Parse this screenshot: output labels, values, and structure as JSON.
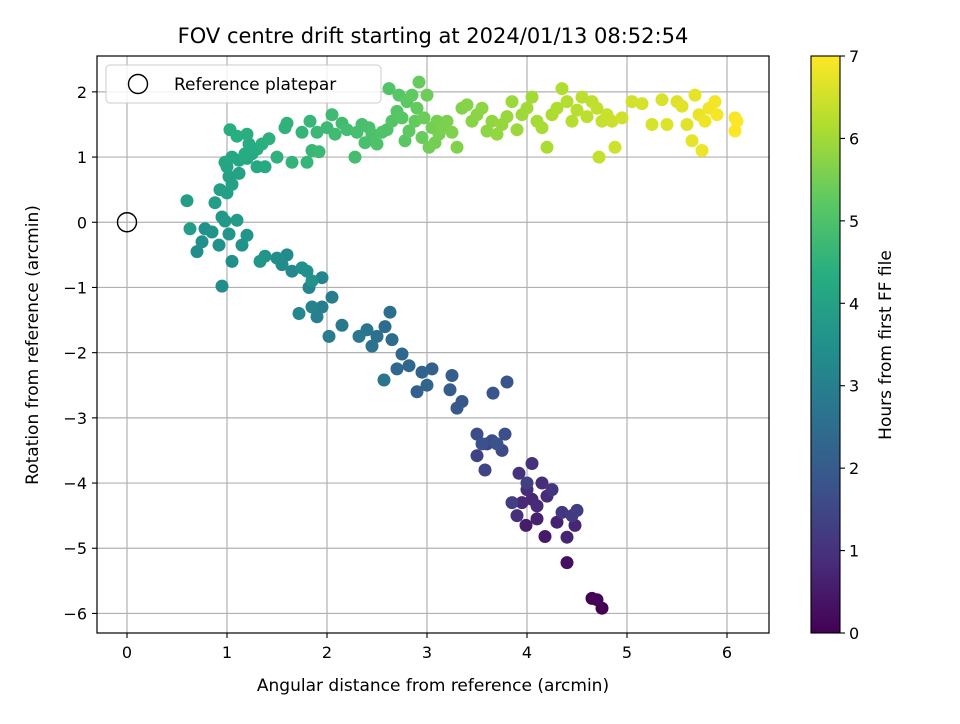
{
  "chart_data": {
    "type": "scatter",
    "title": "FOV centre drift starting at 2024/01/13 08:52:54",
    "xlabel": "Angular distance from reference (arcmin)",
    "ylabel": "Rotation from reference (arcmin)",
    "xlim": [
      -0.3,
      6.42
    ],
    "ylim": [
      -6.3,
      2.55
    ],
    "xticks": [
      0,
      1,
      2,
      3,
      4,
      5,
      6
    ],
    "yticks": [
      -6,
      -5,
      -4,
      -3,
      -2,
      -1,
      0,
      1,
      2
    ],
    "grid": true,
    "legend": {
      "placement": "upper-left",
      "entries": [
        "Reference platepar"
      ]
    },
    "reference_point": {
      "x": 0,
      "y": 0
    },
    "colorbar": {
      "label": "Hours from first FF file",
      "range": [
        0,
        7
      ],
      "ticks": [
        0,
        1,
        2,
        3,
        4,
        5,
        6,
        7
      ],
      "colormap": "viridis"
    },
    "series": [
      {
        "values": [
          [
            4.75,
            -5.92,
            0.0
          ],
          [
            4.65,
            -5.77,
            0.03
          ],
          [
            4.7,
            -5.79,
            0.06
          ],
          [
            4.4,
            -5.22,
            0.3
          ],
          [
            4.18,
            -4.82,
            0.5
          ],
          [
            3.99,
            -4.65,
            0.55
          ],
          [
            4.1,
            -4.55,
            0.65
          ],
          [
            4.3,
            -4.6,
            0.7
          ],
          [
            4.4,
            -4.83,
            0.72
          ],
          [
            4.48,
            -4.65,
            0.75
          ],
          [
            4.05,
            -4.25,
            0.8
          ],
          [
            3.95,
            -4.3,
            0.82
          ],
          [
            4.1,
            -4.35,
            0.85
          ],
          [
            4.2,
            -4.2,
            0.87
          ],
          [
            4.0,
            -4.1,
            0.9
          ],
          [
            4.15,
            -4.0,
            0.92
          ],
          [
            3.9,
            -4.5,
            0.95
          ],
          [
            4.05,
            -3.7,
            1.0
          ],
          [
            3.92,
            -3.85,
            1.05
          ],
          [
            4.25,
            -4.1,
            1.1
          ],
          [
            4.35,
            -4.45,
            1.15
          ],
          [
            4.45,
            -4.5,
            1.2
          ],
          [
            4.5,
            -4.42,
            1.25
          ],
          [
            3.85,
            -4.3,
            1.3
          ],
          [
            4.0,
            -4.0,
            1.35
          ],
          [
            3.5,
            -3.58,
            1.4
          ],
          [
            3.58,
            -3.8,
            1.45
          ],
          [
            3.6,
            -3.4,
            1.5
          ],
          [
            3.75,
            -3.5,
            1.55
          ],
          [
            3.65,
            -3.35,
            1.6
          ],
          [
            3.5,
            -3.25,
            1.65
          ],
          [
            3.78,
            -3.25,
            1.7
          ],
          [
            3.55,
            -3.4,
            1.75
          ],
          [
            3.7,
            -3.4,
            1.8
          ],
          [
            3.8,
            -2.45,
            1.85
          ],
          [
            3.66,
            -2.62,
            1.9
          ],
          [
            3.35,
            -2.75,
            1.95
          ],
          [
            3.3,
            -2.85,
            2.0
          ],
          [
            3.23,
            -2.57,
            2.05
          ],
          [
            3.25,
            -2.35,
            2.1
          ],
          [
            3.05,
            -2.25,
            2.15
          ],
          [
            2.9,
            -2.6,
            2.2
          ],
          [
            2.95,
            -2.3,
            2.25
          ],
          [
            3.0,
            -2.5,
            2.3
          ],
          [
            2.82,
            -2.2,
            2.35
          ],
          [
            2.75,
            -2.02,
            2.38
          ],
          [
            2.7,
            -2.25,
            2.4
          ],
          [
            2.65,
            -1.8,
            2.45
          ],
          [
            2.58,
            -1.6,
            2.5
          ],
          [
            2.63,
            -1.38,
            2.55
          ],
          [
            2.5,
            -1.75,
            2.6
          ],
          [
            2.45,
            -1.9,
            2.65
          ],
          [
            2.57,
            -2.42,
            2.7
          ],
          [
            2.4,
            -1.65,
            2.75
          ],
          [
            2.32,
            -1.75,
            2.8
          ],
          [
            2.15,
            -1.58,
            2.85
          ],
          [
            2.02,
            -1.75,
            2.9
          ],
          [
            2.05,
            -1.15,
            2.95
          ],
          [
            1.95,
            -1.3,
            3.0
          ],
          [
            1.9,
            -1.45,
            3.05
          ],
          [
            1.85,
            -1.3,
            3.1
          ],
          [
            1.82,
            -1.0,
            3.15
          ],
          [
            1.95,
            -0.85,
            3.2
          ],
          [
            1.72,
            -1.4,
            3.25
          ],
          [
            1.65,
            -0.75,
            3.3
          ],
          [
            1.6,
            -0.5,
            3.35
          ],
          [
            1.55,
            -0.65,
            3.4
          ],
          [
            1.5,
            -0.55,
            3.45
          ],
          [
            1.75,
            -0.7,
            3.5
          ],
          [
            1.8,
            -0.75,
            3.55
          ],
          [
            1.85,
            -0.9,
            3.6
          ],
          [
            1.38,
            -0.52,
            3.65
          ],
          [
            1.33,
            -0.6,
            3.7
          ],
          [
            0.95,
            -0.98,
            3.45
          ],
          [
            1.05,
            -0.6,
            3.5
          ],
          [
            0.78,
            -0.1,
            3.55
          ],
          [
            0.85,
            -0.15,
            3.6
          ],
          [
            0.7,
            -0.45,
            3.45
          ],
          [
            0.75,
            -0.3,
            3.5
          ],
          [
            0.92,
            -0.35,
            3.55
          ],
          [
            1.15,
            -0.35,
            3.6
          ],
          [
            1.2,
            -0.2,
            3.65
          ],
          [
            1.02,
            -0.18,
            3.7
          ],
          [
            0.95,
            0.08,
            3.75
          ],
          [
            0.98,
            0.02,
            3.8
          ],
          [
            1.1,
            0.03,
            3.82
          ],
          [
            0.63,
            -0.1,
            3.85
          ],
          [
            0.6,
            0.33,
            3.9
          ],
          [
            0.88,
            0.3,
            3.92
          ],
          [
            0.93,
            0.5,
            3.95
          ],
          [
            1.0,
            0.45,
            3.97
          ],
          [
            1.05,
            0.58,
            4.0
          ],
          [
            1.02,
            0.7,
            4.02
          ],
          [
            1.12,
            0.75,
            4.05
          ],
          [
            1.0,
            0.85,
            4.1
          ],
          [
            0.98,
            0.92,
            4.12
          ],
          [
            1.05,
            1.0,
            4.15
          ],
          [
            1.12,
            0.95,
            4.18
          ],
          [
            1.2,
            0.98,
            4.2
          ],
          [
            1.25,
            1.05,
            4.22
          ],
          [
            1.3,
            0.85,
            4.25
          ],
          [
            1.38,
            0.85,
            4.27
          ],
          [
            1.3,
            1.12,
            4.3
          ],
          [
            1.22,
            1.2,
            4.32
          ],
          [
            1.18,
            1.05,
            4.35
          ],
          [
            1.03,
            1.42,
            4.37
          ],
          [
            1.1,
            1.32,
            4.4
          ],
          [
            1.2,
            1.35,
            4.42
          ],
          [
            1.35,
            1.2,
            4.45
          ],
          [
            1.42,
            1.28,
            4.47
          ],
          [
            1.5,
            1.0,
            4.5
          ],
          [
            1.58,
            1.45,
            4.52
          ],
          [
            1.6,
            1.52,
            4.55
          ],
          [
            1.65,
            0.92,
            4.57
          ],
          [
            1.75,
            1.38,
            4.6
          ],
          [
            1.8,
            0.92,
            4.62
          ],
          [
            1.83,
            1.55,
            4.65
          ],
          [
            1.85,
            1.1,
            4.67
          ],
          [
            1.9,
            1.38,
            4.7
          ],
          [
            1.92,
            1.08,
            4.72
          ],
          [
            2.0,
            1.45,
            4.75
          ],
          [
            2.05,
            1.65,
            4.77
          ],
          [
            2.08,
            1.35,
            4.8
          ],
          [
            2.15,
            1.52,
            4.82
          ],
          [
            2.2,
            1.42,
            4.85
          ],
          [
            2.28,
            1.0,
            4.87
          ],
          [
            2.3,
            1.38,
            4.9
          ],
          [
            2.35,
            1.5,
            4.92
          ],
          [
            2.38,
            1.22,
            4.95
          ],
          [
            2.42,
            1.45,
            4.97
          ],
          [
            2.45,
            1.35,
            5.0
          ],
          [
            2.5,
            1.2,
            5.02
          ],
          [
            2.55,
            1.38,
            5.05
          ],
          [
            2.6,
            1.42,
            5.07
          ],
          [
            2.62,
            2.05,
            5.1
          ],
          [
            2.65,
            1.55,
            5.12
          ],
          [
            2.7,
            1.7,
            5.15
          ],
          [
            2.72,
            1.95,
            5.17
          ],
          [
            2.75,
            1.6,
            5.2
          ],
          [
            2.78,
            1.25,
            5.22
          ],
          [
            2.8,
            1.85,
            5.25
          ],
          [
            2.82,
            1.4,
            5.27
          ],
          [
            2.85,
            1.95,
            5.3
          ],
          [
            2.88,
            1.55,
            5.32
          ],
          [
            2.9,
            1.75,
            5.35
          ],
          [
            2.92,
            2.15,
            5.37
          ],
          [
            2.95,
            1.3,
            5.4
          ],
          [
            2.97,
            1.6,
            5.42
          ],
          [
            3.0,
            1.95,
            5.45
          ],
          [
            3.02,
            1.15,
            5.47
          ],
          [
            3.05,
            1.45,
            5.5
          ],
          [
            3.08,
            1.22,
            5.52
          ],
          [
            3.1,
            1.55,
            5.55
          ],
          [
            3.12,
            1.35,
            5.57
          ],
          [
            3.15,
            1.45,
            5.6
          ],
          [
            3.2,
            1.55,
            5.62
          ],
          [
            3.25,
            1.38,
            5.65
          ],
          [
            3.3,
            1.15,
            5.67
          ],
          [
            3.35,
            1.75,
            5.7
          ],
          [
            3.4,
            1.8,
            5.72
          ],
          [
            3.45,
            1.55,
            5.75
          ],
          [
            3.5,
            1.65,
            5.77
          ],
          [
            3.55,
            1.75,
            5.8
          ],
          [
            3.6,
            1.4,
            5.82
          ],
          [
            3.65,
            1.55,
            5.85
          ],
          [
            3.7,
            1.35,
            5.87
          ],
          [
            3.75,
            1.5,
            5.9
          ],
          [
            3.8,
            1.62,
            5.92
          ],
          [
            3.85,
            1.85,
            5.95
          ],
          [
            3.9,
            1.42,
            5.97
          ],
          [
            3.95,
            1.65,
            6.0
          ],
          [
            4.0,
            1.75,
            6.02
          ],
          [
            4.05,
            1.92,
            6.05
          ],
          [
            4.1,
            1.55,
            6.07
          ],
          [
            4.15,
            1.45,
            6.1
          ],
          [
            4.2,
            1.15,
            6.12
          ],
          [
            4.25,
            1.65,
            6.15
          ],
          [
            4.3,
            1.75,
            6.17
          ],
          [
            4.35,
            2.05,
            6.2
          ],
          [
            4.4,
            1.85,
            6.22
          ],
          [
            4.45,
            1.55,
            6.25
          ],
          [
            4.5,
            1.72,
            6.27
          ],
          [
            4.55,
            1.92,
            6.3
          ],
          [
            4.6,
            1.62,
            6.32
          ],
          [
            4.65,
            1.85,
            6.35
          ],
          [
            4.7,
            1.75,
            6.37
          ],
          [
            4.72,
            1.0,
            6.4
          ],
          [
            4.75,
            1.55,
            6.42
          ],
          [
            4.8,
            1.65,
            6.45
          ],
          [
            4.85,
            1.55,
            6.47
          ],
          [
            4.88,
            1.15,
            6.5
          ],
          [
            4.95,
            1.6,
            6.52
          ],
          [
            5.05,
            1.85,
            6.55
          ],
          [
            5.15,
            1.82,
            6.57
          ],
          [
            5.25,
            1.5,
            6.6
          ],
          [
            5.35,
            1.88,
            6.62
          ],
          [
            5.4,
            1.5,
            6.65
          ],
          [
            5.5,
            1.85,
            6.67
          ],
          [
            5.55,
            1.78,
            6.7
          ],
          [
            5.6,
            1.5,
            6.72
          ],
          [
            5.65,
            1.25,
            6.75
          ],
          [
            5.68,
            1.95,
            6.77
          ],
          [
            5.72,
            1.65,
            6.8
          ],
          [
            5.75,
            1.1,
            6.82
          ],
          [
            5.78,
            1.55,
            6.85
          ],
          [
            5.82,
            1.75,
            6.87
          ],
          [
            5.88,
            1.85,
            6.9
          ],
          [
            5.9,
            1.65,
            6.92
          ],
          [
            6.08,
            1.6,
            6.95
          ],
          [
            6.1,
            1.55,
            6.97
          ],
          [
            6.08,
            1.4,
            7.0
          ]
        ]
      }
    ]
  }
}
